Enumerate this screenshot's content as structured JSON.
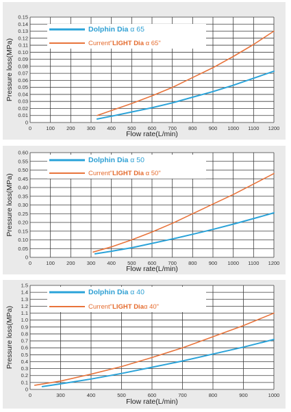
{
  "colors": {
    "dolphin": "#2aa3d9",
    "current": "#e8733a",
    "grid": "#3a3a3a",
    "bg": "#ffffff",
    "panel": "#eaeaea"
  },
  "chart_data": [
    {
      "type": "line",
      "xlabel": "Flow rate(L/min)",
      "ylabel": "Pressure loss(MPa)",
      "xlim": [
        0,
        1200
      ],
      "ylim": [
        0,
        0.15
      ],
      "x_ticks": [
        "0",
        "100",
        "200",
        "300",
        "400",
        "500",
        "600",
        "700",
        "800",
        "900",
        "1000",
        "1100",
        "1200"
      ],
      "y_ticks": [
        "0",
        "0.01",
        "0.02",
        "0.03",
        "0.04",
        "0.05",
        "0.06",
        "0.07",
        "0.08",
        "0.09",
        "0.10",
        "0.11",
        "0.12",
        "0.13",
        "0.14",
        "0.15"
      ],
      "legend": [
        {
          "name_prefix": "Dolphin  Dia ",
          "name_suffix": "α 65",
          "bold_part": ""
        },
        {
          "name_prefix": "Current\"",
          "bold_part": "LIGHT  Dia",
          "name_suffix": " α 65\""
        }
      ],
      "series": [
        {
          "name": "Dolphin Dia α 65",
          "color_key": "dolphin",
          "x": [
            330,
            400,
            500,
            600,
            700,
            800,
            900,
            1000,
            1100,
            1200
          ],
          "y": [
            0.005,
            0.009,
            0.015,
            0.021,
            0.028,
            0.036,
            0.044,
            0.053,
            0.063,
            0.073
          ]
        },
        {
          "name": "Current\"LIGHT Dia α 65\"",
          "color_key": "current",
          "x": [
            330,
            400,
            500,
            600,
            700,
            800,
            900,
            1000,
            1100,
            1200
          ],
          "y": [
            0.01,
            0.017,
            0.027,
            0.038,
            0.05,
            0.064,
            0.078,
            0.094,
            0.111,
            0.13
          ]
        }
      ]
    },
    {
      "type": "line",
      "xlabel": "Flow rate(L/min)",
      "ylabel": "Pressure loss(MPa)",
      "xlim": [
        0,
        1200
      ],
      "ylim": [
        0,
        0.6
      ],
      "x_ticks": [
        "0",
        "100",
        "200",
        "300",
        "400",
        "500",
        "600",
        "700",
        "800",
        "900",
        "1000",
        "1100",
        "1200"
      ],
      "y_ticks": [
        "0",
        "0.05",
        "0.10",
        "0.15",
        "0.20",
        "0.25",
        "0.30",
        "0.35",
        "0.40",
        "0.45",
        "0.50",
        "0.55",
        "0.60"
      ],
      "legend": [
        {
          "name_prefix": "Dolphin  Dia ",
          "name_suffix": "α 50",
          "bold_part": ""
        },
        {
          "name_prefix": "Current\"",
          "bold_part": "LIGHT  Dia",
          "name_suffix": " α 50\""
        }
      ],
      "series": [
        {
          "name": "Dolphin Dia α 50",
          "color_key": "dolphin",
          "x": [
            320,
            400,
            500,
            600,
            700,
            800,
            900,
            1000,
            1100,
            1200
          ],
          "y": [
            0.02,
            0.035,
            0.055,
            0.08,
            0.105,
            0.132,
            0.16,
            0.19,
            0.222,
            0.255
          ]
        },
        {
          "name": "Current\"LIGHT Dia α 50\"",
          "color_key": "current",
          "x": [
            310,
            400,
            500,
            600,
            700,
            800,
            900,
            1000,
            1100,
            1200
          ],
          "y": [
            0.03,
            0.06,
            0.1,
            0.145,
            0.195,
            0.25,
            0.305,
            0.36,
            0.42,
            0.48
          ]
        }
      ]
    },
    {
      "type": "line",
      "xlabel": "Flow rate(L/min)",
      "ylabel": "Pressure loss(MPa)",
      "xlim": [
        200,
        1000
      ],
      "ylim": [
        0,
        1.5
      ],
      "x_ticks": [
        "0",
        "300",
        "400",
        "500",
        "600",
        "700",
        "800",
        "900",
        "1000"
      ],
      "y_ticks": [
        "0",
        "0.1",
        "0.2",
        "0.3",
        "0.4",
        "0.5",
        "0.6",
        "0.7",
        "0.8",
        "0.9",
        "1.0",
        "1.1",
        "1.2",
        "1.3",
        "1.4",
        "1.5"
      ],
      "legend": [
        {
          "name_prefix": "Dolphin  Dia ",
          "name_suffix": "α 40",
          "bold_part": ""
        },
        {
          "name_prefix": "Current\"",
          "bold_part": "LIGHT  Dia",
          "name_suffix": "α 40\""
        }
      ],
      "series": [
        {
          "name": "Dolphin Dia α 40",
          "color_key": "dolphin",
          "x": [
            240,
            300,
            400,
            500,
            600,
            700,
            800,
            900,
            1000
          ],
          "y": [
            0.04,
            0.08,
            0.15,
            0.23,
            0.32,
            0.41,
            0.51,
            0.61,
            0.72
          ]
        },
        {
          "name": "Current\"LIGHT Dia α 40\"",
          "color_key": "current",
          "x": [
            215,
            300,
            400,
            500,
            600,
            700,
            800,
            900,
            1000
          ],
          "y": [
            0.06,
            0.12,
            0.22,
            0.33,
            0.46,
            0.6,
            0.76,
            0.92,
            1.1
          ]
        }
      ]
    }
  ]
}
